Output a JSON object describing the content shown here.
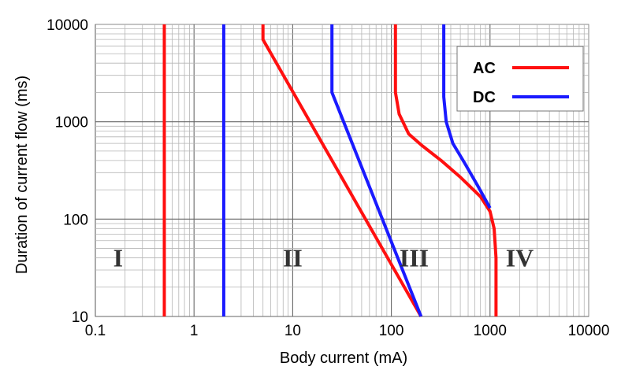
{
  "chart_data": {
    "type": "line",
    "xlabel": "Body current (mA)",
    "ylabel": "Duration of current flow (ms)",
    "xscale": "log",
    "yscale": "log",
    "xlim": [
      0.1,
      10000
    ],
    "ylim": [
      10,
      10000
    ],
    "x_ticks": [
      "0.1",
      "1",
      "10",
      "100",
      "1000",
      "10000"
    ],
    "y_ticks": [
      "10",
      "100",
      "1000",
      "10000"
    ],
    "grid": true,
    "legend": {
      "position": "top-right",
      "entries": [
        "AC",
        "DC"
      ]
    },
    "region_labels": [
      {
        "text": "I",
        "x": 0.17,
        "y": 40
      },
      {
        "text": "II",
        "x": 10,
        "y": 40
      },
      {
        "text": "III",
        "x": 170,
        "y": 40
      },
      {
        "text": "IV",
        "x": 2000,
        "y": 40
      }
    ],
    "series": [
      {
        "name": "AC",
        "color": "#ff1010",
        "curve": "a",
        "points": [
          [
            0.5,
            10
          ],
          [
            0.5,
            10000
          ]
        ]
      },
      {
        "name": "DC",
        "color": "#1a1aff",
        "curve": "a",
        "points": [
          [
            2,
            10
          ],
          [
            2,
            10000
          ]
        ]
      },
      {
        "name": "AC",
        "color": "#ff1010",
        "curve": "b",
        "points": [
          [
            5,
            10000
          ],
          [
            5,
            7000
          ],
          [
            200,
            10
          ]
        ]
      },
      {
        "name": "DC",
        "color": "#1a1aff",
        "curve": "b",
        "points": [
          [
            25,
            10000
          ],
          [
            25,
            2000
          ],
          [
            200,
            10
          ]
        ]
      },
      {
        "name": "AC",
        "color": "#ff1010",
        "curve": "c",
        "points": [
          [
            110,
            10000
          ],
          [
            110,
            2000
          ],
          [
            120,
            1200
          ],
          [
            150,
            750
          ],
          [
            200,
            580
          ],
          [
            320,
            400
          ],
          [
            500,
            270
          ],
          [
            800,
            170
          ],
          [
            1000,
            120
          ],
          [
            1100,
            80
          ],
          [
            1150,
            40
          ],
          [
            1150,
            10
          ]
        ]
      },
      {
        "name": "DC",
        "color": "#1a1aff",
        "curve": "c",
        "points": [
          [
            340,
            10000
          ],
          [
            340,
            1800
          ],
          [
            360,
            1000
          ],
          [
            420,
            600
          ],
          [
            550,
            380
          ],
          [
            750,
            220
          ],
          [
            1000,
            130
          ]
        ]
      }
    ]
  }
}
